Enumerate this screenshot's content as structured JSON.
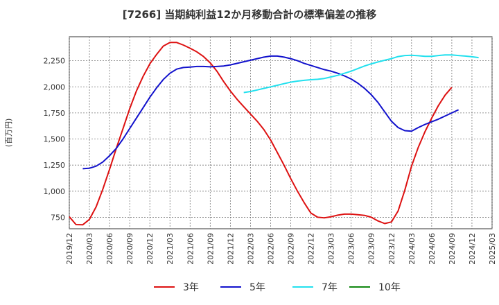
{
  "chart_data": {
    "type": "line",
    "title": "[7266]  当期純利益12か月移動合計の標準偏差の推移",
    "ylabel": "(百万円)",
    "xlabel": "",
    "ylim": [
      640,
      2480
    ],
    "yticks": [
      750,
      1000,
      1250,
      1500,
      1750,
      2000,
      2250
    ],
    "ytick_labels": [
      "750",
      "1,000",
      "1,250",
      "1,500",
      "1,750",
      "2,000",
      "2,250"
    ],
    "xticks": [
      "2019/12",
      "2020/03",
      "2020/06",
      "2020/09",
      "2020/12",
      "2021/03",
      "2021/06",
      "2021/09",
      "2021/12",
      "2022/03",
      "2022/06",
      "2022/09",
      "2022/12",
      "2023/03",
      "2023/06",
      "2023/09",
      "2023/12",
      "2024/03",
      "2024/06",
      "2024/09",
      "2024/12",
      "2025/03"
    ],
    "grid": true,
    "legend_position": "bottom",
    "series": [
      {
        "name": "3年",
        "color": "#dd1111",
        "points": [
          [
            "2019/12",
            755
          ],
          [
            "2020/01",
            680
          ],
          [
            "2020/02",
            678
          ],
          [
            "2020/03",
            730
          ],
          [
            "2020/04",
            850
          ],
          [
            "2020/05",
            1020
          ],
          [
            "2020/06",
            1210
          ],
          [
            "2020/07",
            1410
          ],
          [
            "2020/08",
            1600
          ],
          [
            "2020/09",
            1790
          ],
          [
            "2020/10",
            1960
          ],
          [
            "2020/11",
            2100
          ],
          [
            "2020/12",
            2220
          ],
          [
            "2021/01",
            2310
          ],
          [
            "2021/02",
            2390
          ],
          [
            "2021/03",
            2425
          ],
          [
            "2021/04",
            2425
          ],
          [
            "2021/05",
            2400
          ],
          [
            "2021/06",
            2370
          ],
          [
            "2021/07",
            2335
          ],
          [
            "2021/08",
            2290
          ],
          [
            "2021/09",
            2230
          ],
          [
            "2021/10",
            2150
          ],
          [
            "2021/11",
            2050
          ],
          [
            "2021/12",
            1960
          ],
          [
            "2022/01",
            1880
          ],
          [
            "2022/02",
            1810
          ],
          [
            "2022/03",
            1740
          ],
          [
            "2022/04",
            1670
          ],
          [
            "2022/05",
            1590
          ],
          [
            "2022/06",
            1490
          ],
          [
            "2022/07",
            1370
          ],
          [
            "2022/08",
            1250
          ],
          [
            "2022/09",
            1120
          ],
          [
            "2022/10",
            1000
          ],
          [
            "2022/11",
            890
          ],
          [
            "2022/12",
            790
          ],
          [
            "2023/01",
            750
          ],
          [
            "2023/02",
            745
          ],
          [
            "2023/03",
            755
          ],
          [
            "2023/04",
            770
          ],
          [
            "2023/05",
            780
          ],
          [
            "2023/06",
            780
          ],
          [
            "2023/07",
            775
          ],
          [
            "2023/08",
            768
          ],
          [
            "2023/09",
            750
          ],
          [
            "2023/10",
            715
          ],
          [
            "2023/11",
            690
          ],
          [
            "2023/12",
            705
          ],
          [
            "2024/01",
            810
          ],
          [
            "2024/02",
            1010
          ],
          [
            "2024/03",
            1240
          ],
          [
            "2024/04",
            1420
          ],
          [
            "2024/05",
            1570
          ],
          [
            "2024/06",
            1700
          ],
          [
            "2024/07",
            1820
          ],
          [
            "2024/08",
            1920
          ],
          [
            "2024/09",
            1995
          ]
        ]
      },
      {
        "name": "5年",
        "color": "#1111cc",
        "points": [
          [
            "2020/02",
            1215
          ],
          [
            "2020/03",
            1220
          ],
          [
            "2020/04",
            1240
          ],
          [
            "2020/05",
            1280
          ],
          [
            "2020/06",
            1340
          ],
          [
            "2020/07",
            1410
          ],
          [
            "2020/08",
            1500
          ],
          [
            "2020/09",
            1600
          ],
          [
            "2020/10",
            1700
          ],
          [
            "2020/11",
            1800
          ],
          [
            "2020/12",
            1900
          ],
          [
            "2021/01",
            1990
          ],
          [
            "2021/02",
            2070
          ],
          [
            "2021/03",
            2130
          ],
          [
            "2021/04",
            2170
          ],
          [
            "2021/05",
            2185
          ],
          [
            "2021/06",
            2190
          ],
          [
            "2021/07",
            2195
          ],
          [
            "2021/08",
            2195
          ],
          [
            "2021/09",
            2192
          ],
          [
            "2021/10",
            2195
          ],
          [
            "2021/11",
            2200
          ],
          [
            "2021/12",
            2210
          ],
          [
            "2022/01",
            2225
          ],
          [
            "2022/02",
            2240
          ],
          [
            "2022/03",
            2255
          ],
          [
            "2022/04",
            2270
          ],
          [
            "2022/05",
            2285
          ],
          [
            "2022/06",
            2295
          ],
          [
            "2022/07",
            2295
          ],
          [
            "2022/08",
            2285
          ],
          [
            "2022/09",
            2270
          ],
          [
            "2022/10",
            2250
          ],
          [
            "2022/11",
            2225
          ],
          [
            "2022/12",
            2205
          ],
          [
            "2023/01",
            2185
          ],
          [
            "2023/02",
            2165
          ],
          [
            "2023/03",
            2150
          ],
          [
            "2023/04",
            2130
          ],
          [
            "2023/05",
            2105
          ],
          [
            "2023/06",
            2075
          ],
          [
            "2023/07",
            2035
          ],
          [
            "2023/08",
            1985
          ],
          [
            "2023/09",
            1925
          ],
          [
            "2023/10",
            1850
          ],
          [
            "2023/11",
            1760
          ],
          [
            "2023/12",
            1670
          ],
          [
            "2024/01",
            1610
          ],
          [
            "2024/02",
            1580
          ],
          [
            "2024/03",
            1575
          ],
          [
            "2024/04",
            1610
          ],
          [
            "2024/05",
            1640
          ],
          [
            "2024/06",
            1665
          ],
          [
            "2024/07",
            1690
          ],
          [
            "2024/08",
            1720
          ],
          [
            "2024/09",
            1750
          ],
          [
            "2024/10",
            1780
          ]
        ]
      },
      {
        "name": "7年",
        "color": "#22e0ee",
        "points": [
          [
            "2022/02",
            1945
          ],
          [
            "2022/03",
            1955
          ],
          [
            "2022/04",
            1970
          ],
          [
            "2022/05",
            1985
          ],
          [
            "2022/06",
            2000
          ],
          [
            "2022/07",
            2015
          ],
          [
            "2022/08",
            2030
          ],
          [
            "2022/09",
            2045
          ],
          [
            "2022/10",
            2055
          ],
          [
            "2022/11",
            2062
          ],
          [
            "2022/12",
            2068
          ],
          [
            "2023/01",
            2072
          ],
          [
            "2023/02",
            2080
          ],
          [
            "2023/03",
            2095
          ],
          [
            "2023/04",
            2110
          ],
          [
            "2023/05",
            2130
          ],
          [
            "2023/06",
            2150
          ],
          [
            "2023/07",
            2175
          ],
          [
            "2023/08",
            2200
          ],
          [
            "2023/09",
            2220
          ],
          [
            "2023/10",
            2238
          ],
          [
            "2023/11",
            2255
          ],
          [
            "2023/12",
            2270
          ],
          [
            "2024/01",
            2290
          ],
          [
            "2024/02",
            2300
          ],
          [
            "2024/03",
            2302
          ],
          [
            "2024/04",
            2298
          ],
          [
            "2024/05",
            2292
          ],
          [
            "2024/06",
            2292
          ],
          [
            "2024/07",
            2300
          ],
          [
            "2024/08",
            2305
          ],
          [
            "2024/09",
            2305
          ],
          [
            "2024/10",
            2300
          ],
          [
            "2024/11",
            2295
          ],
          [
            "2024/12",
            2288
          ],
          [
            "2025/01",
            2280
          ]
        ]
      },
      {
        "name": "10年",
        "color": "#118811",
        "points": []
      }
    ]
  }
}
